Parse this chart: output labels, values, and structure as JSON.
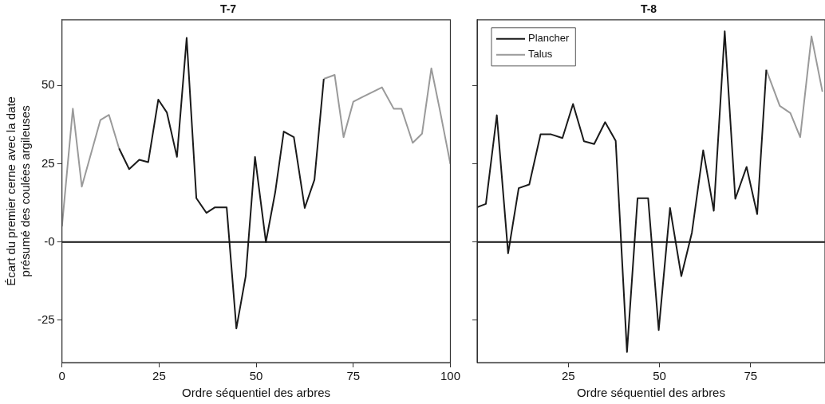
{
  "chart_data": [
    {
      "type": "line",
      "title": "T-7",
      "xlabel": "Ordre séquentiel des arbres",
      "ylabel": "Écart du premier cerne avec la date\nprésumé des coulées argileuses",
      "xlim": [
        0,
        100
      ],
      "xticks": [
        0,
        25,
        50,
        75,
        100
      ],
      "ylim": [
        -38.5,
        71
      ],
      "yticks": [
        -25,
        {
          "value": 0,
          "label": "-0"
        },
        25,
        50
      ],
      "grid": false,
      "legend": false,
      "ref_lines": [
        {
          "axis": "y",
          "value": 0,
          "color": "#111111"
        }
      ],
      "series": [
        {
          "color": "#1a1a1a",
          "x": [
            14.7,
            17.3,
            19.9,
            22.2,
            24.8,
            27,
            29.6,
            32.1,
            34.6,
            37.2,
            39.4,
            42.4,
            44.9,
            47.3,
            49.7,
            52.5,
            54.9,
            57.1,
            59.7,
            62.5,
            65,
            67.4
          ],
          "values": [
            29.9,
            23.3,
            26.3,
            25.5,
            45.5,
            41.4,
            27.2,
            65.2,
            14,
            9.3,
            11.1,
            11.1,
            -27.6,
            -10.9,
            27.2,
            0,
            15.9,
            35.3,
            33.5,
            10.9,
            19.9,
            52.1
          ]
        },
        {
          "color": "#9a9a9a",
          "x": [
            0,
            2.8,
            5.1,
            9.9,
            12.1,
            14.7,
            40,
            67.4,
            70.2,
            72.5,
            75,
            77.2,
            82.4,
            85.4,
            87.4,
            90.3,
            92.7,
            95.1,
            97.3,
            100
          ],
          "values": [
            5,
            42.6,
            17.7,
            39,
            40.6,
            29.9,
            null,
            52.1,
            53.4,
            33.5,
            44.8,
            46.2,
            49.4,
            42.6,
            42.6,
            31.7,
            34.6,
            55.5,
            42.1,
            24.9
          ]
        }
      ]
    },
    {
      "type": "line",
      "title": "T-8",
      "xlabel": "Ordre séquentiel des arbres",
      "xlim": [
        0,
        95.4
      ],
      "xticks": [
        25,
        50,
        75
      ],
      "ylim": [
        -38.5,
        71
      ],
      "yticks": [
        -25,
        0,
        25,
        50
      ],
      "tick_labels": "x",
      "grid": false,
      "legend": "top left",
      "ref_lines": [
        {
          "axis": "y",
          "value": 0,
          "color": "#111111"
        }
      ],
      "series": [
        {
          "name": "Plancher",
          "color": "#1a1a1a",
          "x": [
            0,
            2.4,
            5.4,
            8.5,
            11.4,
            14.3,
            17.4,
            20.3,
            23.4,
            26.3,
            29.3,
            32.1,
            35.1,
            38,
            41.1,
            44,
            46.9,
            49.8,
            52.9,
            56,
            58.9,
            62,
            64.9,
            67.9,
            70.8,
            73.9,
            76.8,
            79.3
          ],
          "values": [
            11.1,
            12.2,
            40.5,
            -3.6,
            17.2,
            18.4,
            34.4,
            34.4,
            33.2,
            44.1,
            32.2,
            31.3,
            38.3,
            32.3,
            -35.1,
            14,
            14,
            -28.1,
            10.9,
            -10.9,
            3,
            29.3,
            10,
            67.3,
            13.8,
            24,
            8.9,
            55
          ]
        },
        {
          "name": "Talus",
          "color": "#9a9a9a",
          "x": [
            79.3,
            83,
            85.9,
            88.6,
            91.7,
            94.7
          ],
          "values": [
            55,
            43.5,
            41.2,
            33.5,
            65.7,
            48
          ]
        }
      ]
    }
  ]
}
